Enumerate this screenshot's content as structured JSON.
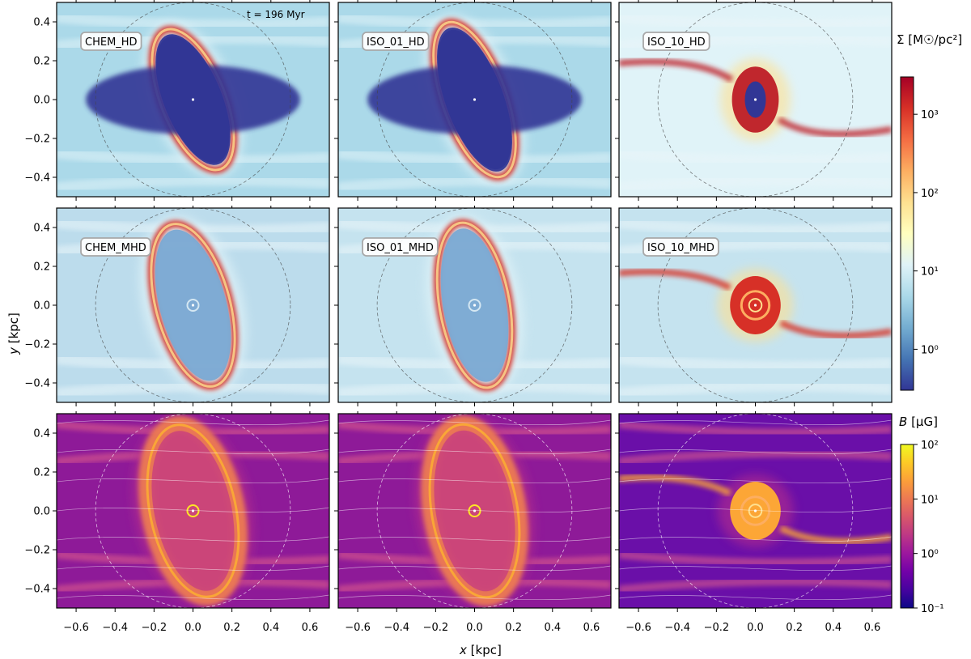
{
  "figure": {
    "time_label": "t = 196 Myr",
    "xlabel_var": "x",
    "xlabel_unit": "[kpc]",
    "ylabel_var": "y",
    "ylabel_unit": "[kpc]",
    "colorbar_surface": {
      "symbol": "Σ",
      "unit": "[M☉/pc²]",
      "ticks": [
        "10⁰",
        "10¹",
        "10²",
        "10³"
      ],
      "tick_values": [
        1,
        10,
        100,
        1000
      ],
      "range": [
        0.3,
        3000
      ],
      "colormap": [
        "#313695",
        "#4575b4",
        "#74add1",
        "#abd9e9",
        "#e0f3f8",
        "#ffffbf",
        "#fee090",
        "#fdae61",
        "#f46d43",
        "#d73027",
        "#a50026"
      ]
    },
    "colorbar_field": {
      "symbol": "B",
      "unit": "[μG]",
      "ticks": [
        "10⁻¹",
        "10⁰",
        "10¹",
        "10²"
      ],
      "tick_values": [
        0.1,
        1,
        10,
        100
      ],
      "range": [
        0.1,
        100
      ],
      "colormap": [
        "#0d0887",
        "#46039f",
        "#7201a8",
        "#9c179e",
        "#bd3786",
        "#d8576b",
        "#ed7953",
        "#fb9f3a",
        "#fdca26",
        "#f0f921"
      ]
    }
  },
  "chart_data": {
    "type": "heatmap",
    "layout": "3 rows x 3 columns",
    "xlim": [
      -0.7,
      0.7
    ],
    "ylim": [
      -0.5,
      0.5
    ],
    "xticks": [
      -0.6,
      -0.4,
      -0.2,
      0.0,
      0.2,
      0.4,
      0.6
    ],
    "xtick_labels": [
      "−0.6",
      "−0.4",
      "−0.2",
      "0.0",
      "0.2",
      "0.4",
      "0.6"
    ],
    "yticks": [
      0.4,
      0.2,
      0.0,
      -0.2,
      -0.4
    ],
    "ytick_labels": [
      "0.4",
      "0.2",
      "0.0",
      "−0.2",
      "−0.4"
    ],
    "reference_circle_radius": 0.5,
    "panels": [
      {
        "label": "CHEM_HD",
        "quantity": "surface",
        "kind": "hole",
        "ring_a": 0.165,
        "ring_b": 0.385,
        "tilt": -22,
        "ring_color": "#d73027",
        "bg": "#abd9e9",
        "hole": "#313695"
      },
      {
        "label": "ISO_01_HD",
        "quantity": "surface",
        "kind": "hole",
        "ring_a": 0.165,
        "ring_b": 0.42,
        "tilt": -20,
        "ring_color": "#d73027",
        "bg": "#abd9e9",
        "hole": "#313695"
      },
      {
        "label": "ISO_10_HD",
        "quantity": "surface",
        "kind": "compact",
        "ring_a": 0.12,
        "ring_b": 0.17,
        "tilt": 0,
        "ring_color": "#c0272d",
        "bg": "#e0f3f8",
        "hole": "#313695"
      },
      {
        "label": "CHEM_MHD",
        "quantity": "surface",
        "kind": "ring",
        "ring_a": 0.19,
        "ring_b": 0.43,
        "tilt": -15,
        "ring_color": "#d73027",
        "bg": "#bcdcec",
        "hole": "#7aa8d2"
      },
      {
        "label": "ISO_01_MHD",
        "quantity": "surface",
        "kind": "ring",
        "ring_a": 0.18,
        "ring_b": 0.43,
        "tilt": -10,
        "ring_color": "#d73027",
        "bg": "#c5e3ef",
        "hole": "#7aa8d2"
      },
      {
        "label": "ISO_10_MHD",
        "quantity": "surface",
        "kind": "spiral",
        "ring_a": 0.13,
        "ring_b": 0.15,
        "tilt": 0,
        "ring_color": "#d73027",
        "bg": "#c5e3ef",
        "hole": "#f46d43"
      },
      {
        "label": "",
        "quantity": "field",
        "kind": "ring",
        "ring_a": 0.22,
        "ring_b": 0.45,
        "tilt": -12,
        "ring_color": "#f07f4f",
        "bg": "#8e1a98",
        "hole": "#cc4778"
      },
      {
        "label": "",
        "quantity": "field",
        "kind": "ring",
        "ring_a": 0.22,
        "ring_b": 0.45,
        "tilt": -10,
        "ring_color": "#f07f4f",
        "bg": "#8e1a98",
        "hole": "#cc4778"
      },
      {
        "label": "",
        "quantity": "field",
        "kind": "spiral",
        "ring_a": 0.13,
        "ring_b": 0.15,
        "tilt": 0,
        "ring_color": "#fca636",
        "bg": "#6a0fa8",
        "hole": "#ed7953"
      }
    ]
  }
}
